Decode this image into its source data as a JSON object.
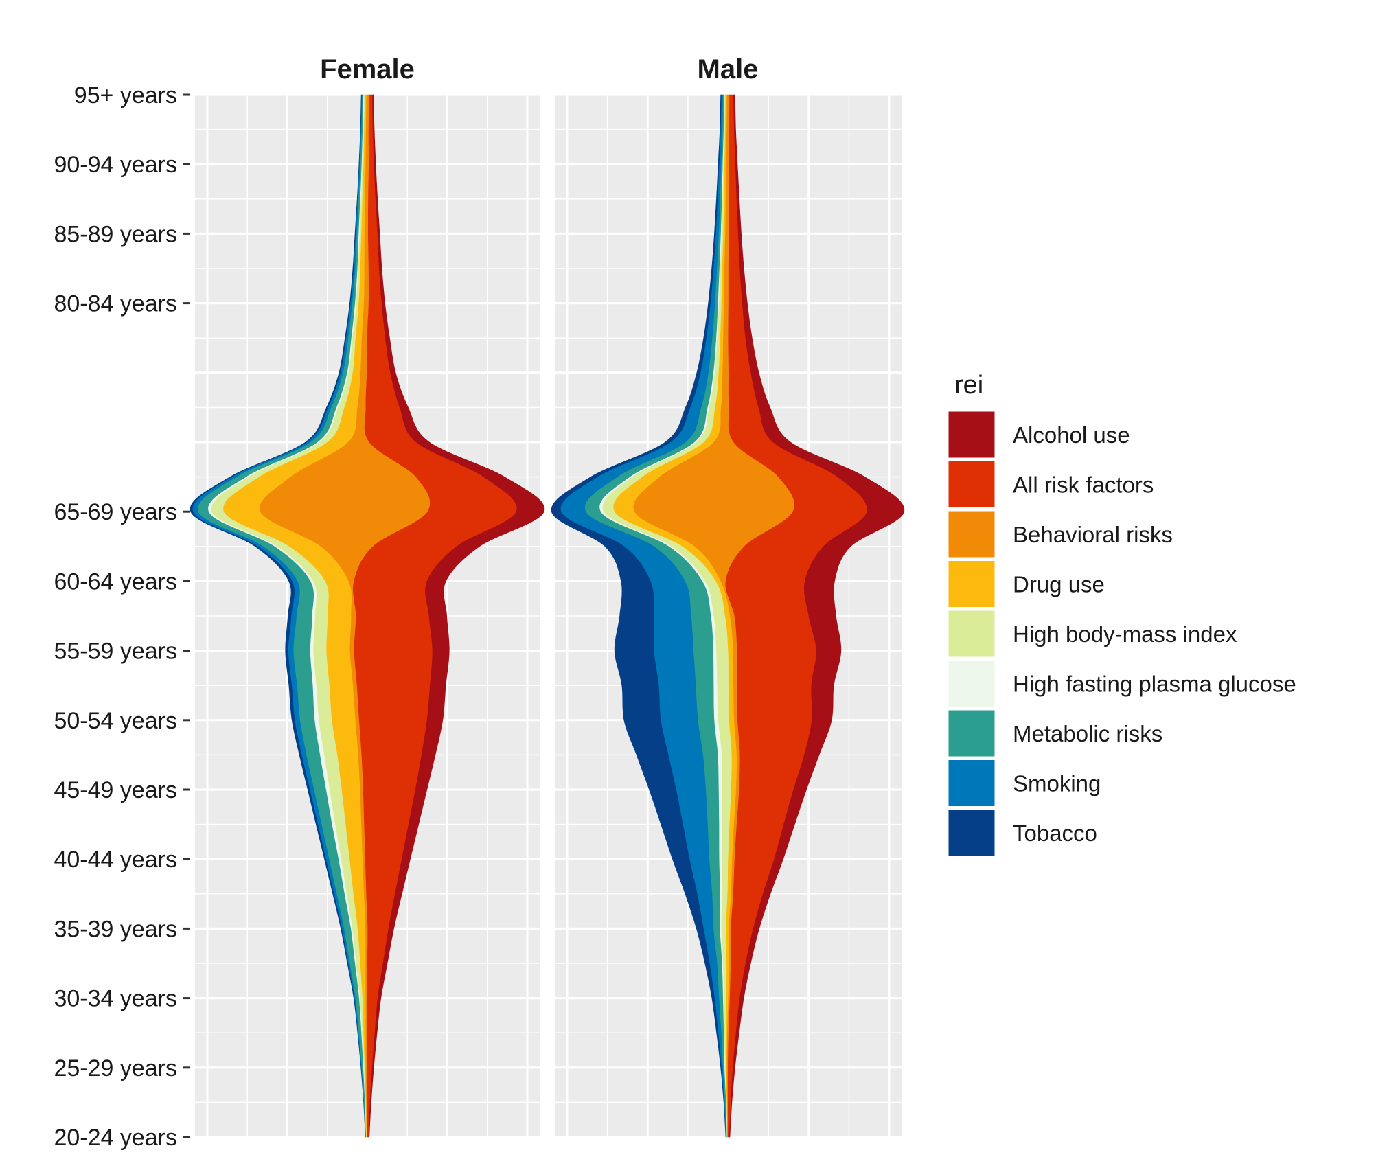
{
  "chart_data": {
    "type": "area",
    "subtype": "streamgraph-faceted",
    "facets": [
      "Female",
      "Male"
    ],
    "y_categories": [
      "20-24 years",
      "25-29 years",
      "30-34 years",
      "35-39 years",
      "40-44 years",
      "45-49 years",
      "50-54 years",
      "55-59 years",
      "60-64 years",
      "65-69 years",
      "80-84 years",
      "85-89 years",
      "90-94 years",
      "95+ years"
    ],
    "y_positions": [
      20,
      25,
      30,
      35,
      40,
      45,
      50,
      55,
      60,
      65,
      80,
      85,
      90,
      95
    ],
    "x_tick_labels": [],
    "grid": true,
    "legend_title": "rei",
    "legend_position": "right",
    "series": [
      {
        "name": "Alcohol use",
        "color": "#A50F15"
      },
      {
        "name": "All risk factors",
        "color": "#DE3004"
      },
      {
        "name": "Behavioral risks",
        "color": "#F18B07"
      },
      {
        "name": "Drug use",
        "color": "#FCBA0F"
      },
      {
        "name": "High body-mass index",
        "color": "#DAEC98"
      },
      {
        "name": "High fasting plasma glucose",
        "color": "#EEF7EC"
      },
      {
        "name": "Metabolic risks",
        "color": "#2C9E8F"
      },
      {
        "name": "Smoking",
        "color": "#0077B9"
      },
      {
        "name": "Tobacco",
        "color": "#053F88"
      }
    ],
    "panels": [
      {
        "facet": "Female",
        "age": [
          20,
          22.5,
          25,
          27.5,
          30,
          32.5,
          35,
          37.5,
          40,
          42.5,
          45,
          47.5,
          50,
          52.5,
          55,
          57.5,
          60,
          62.5,
          65,
          67.5,
          70,
          72.5,
          75,
          77.5,
          80,
          82.5,
          85,
          87.5,
          90,
          92.5,
          95
        ],
        "values": {
          "Alcohol use": [
            0.1,
            0.2,
            0.3,
            0.4,
            0.6,
            0.8,
            1.0,
            1.3,
            1.6,
            1.9,
            2.2,
            2.6,
            3.0,
            3.0,
            3.2,
            3.4,
            3.6,
            4.4,
            5.3,
            4.0,
            2.5,
            1.6,
            1.0,
            0.8,
            0.6,
            0.5,
            0.4,
            0.35,
            0.3,
            0.25,
            0.2
          ],
          "All risk factors": [
            0.3,
            0.6,
            1.0,
            1.5,
            2.0,
            3.0,
            4.0,
            5.5,
            7.0,
            8.5,
            10.0,
            11.5,
            13.0,
            14.0,
            15.0,
            14.0,
            14.0,
            16.0,
            17.0,
            13.0,
            9.0,
            6.5,
            4.5,
            3.5,
            2.5,
            2.0,
            1.8,
            1.4,
            1.0,
            0.8,
            0.6
          ],
          "Behavioral risks": [
            0.05,
            0.1,
            0.2,
            0.25,
            0.3,
            0.35,
            0.4,
            0.45,
            0.5,
            0.55,
            0.6,
            0.65,
            0.7,
            0.75,
            0.8,
            0.9,
            1.0,
            10.0,
            32.0,
            24.0,
            4.0,
            1.6,
            1.2,
            1.0,
            0.9,
            0.8,
            0.7,
            0.6,
            0.6,
            0.5,
            0.5
          ],
          "Drug use": [
            0.05,
            0.1,
            0.2,
            0.4,
            0.6,
            1.0,
            1.5,
            2.0,
            2.5,
            3.0,
            3.5,
            4.0,
            4.5,
            4.5,
            4.5,
            4.5,
            4.5,
            6.0,
            7.0,
            6.0,
            4.0,
            2.5,
            1.5,
            1.2,
            1.0,
            0.8,
            0.6,
            0.5,
            0.4,
            0.35,
            0.3
          ],
          "High body-mass index": [
            0.05,
            0.1,
            0.2,
            0.3,
            0.5,
            0.8,
            1.0,
            1.3,
            1.6,
            2.0,
            2.3,
            2.5,
            2.5,
            2.5,
            2.5,
            2.4,
            2.3,
            2.3,
            2.3,
            2.0,
            1.5,
            1.2,
            0.8,
            0.6,
            0.5,
            0.4,
            0.35,
            0.3,
            0.25,
            0.2,
            0.2
          ],
          "High fasting plasma glucose": [
            0.02,
            0.05,
            0.08,
            0.1,
            0.15,
            0.2,
            0.3,
            0.4,
            0.5,
            0.6,
            0.7,
            0.8,
            0.8,
            0.7,
            0.6,
            0.55,
            0.5,
            0.5,
            0.6,
            0.5,
            0.35,
            0.3,
            0.25,
            0.2,
            0.2,
            0.15,
            0.15,
            0.12,
            0.1,
            0.1,
            0.1
          ],
          "Metabolic risks": [
            0.1,
            0.2,
            0.3,
            0.5,
            0.7,
            1.0,
            1.3,
            1.5,
            1.8,
            2.0,
            2.3,
            2.6,
            2.8,
            3.0,
            3.2,
            3.0,
            2.5,
            2.2,
            2.0,
            1.8,
            1.3,
            1.0,
            0.8,
            0.6,
            0.5,
            0.4,
            0.35,
            0.3,
            0.25,
            0.2,
            0.2
          ],
          "Smoking": [
            0.02,
            0.05,
            0.1,
            0.15,
            0.2,
            0.3,
            0.4,
            0.5,
            0.6,
            0.7,
            0.8,
            0.9,
            1.0,
            1.0,
            1.0,
            1.0,
            1.0,
            1.0,
            1.0,
            0.9,
            0.7,
            0.6,
            0.5,
            0.4,
            0.35,
            0.3,
            0.25,
            0.2,
            0.2,
            0.15,
            0.15
          ],
          "Tobacco": [
            0.02,
            0.05,
            0.08,
            0.1,
            0.15,
            0.2,
            0.25,
            0.3,
            0.35,
            0.4,
            0.45,
            0.5,
            0.6,
            0.6,
            0.6,
            0.7,
            0.7,
            0.6,
            0.5,
            0.45,
            0.4,
            0.35,
            0.3,
            0.25,
            0.2,
            0.2,
            0.15,
            0.12,
            0.1,
            0.1,
            0.1
          ]
        }
      },
      {
        "facet": "Male",
        "age": [
          20,
          22.5,
          25,
          27.5,
          30,
          32.5,
          35,
          37.5,
          40,
          42.5,
          45,
          47.5,
          50,
          52.5,
          55,
          57.5,
          60,
          62.5,
          65,
          67.5,
          70,
          72.5,
          75,
          77.5,
          80,
          82.5,
          85,
          87.5,
          90,
          92.5,
          95
        ],
        "values": {
          "Alcohol use": [
            0.1,
            0.2,
            0.4,
            0.6,
            0.8,
            1.0,
            1.2,
            1.5,
            1.8,
            2.2,
            2.6,
            3.0,
            4.0,
            4.5,
            5.0,
            5.5,
            6.0,
            5.5,
            7.5,
            5.5,
            3.5,
            2.3,
            1.6,
            1.3,
            1.0,
            0.8,
            0.6,
            0.5,
            0.4,
            0.3,
            0.3
          ],
          "All risk factors": [
            0.3,
            0.6,
            1.0,
            1.5,
            2.0,
            3.0,
            4.5,
            6.0,
            8.0,
            9.5,
            11.0,
            13.0,
            15.0,
            15.0,
            16.0,
            15.0,
            16.0,
            16.0,
            15.0,
            12.0,
            8.0,
            6.0,
            4.5,
            3.5,
            2.8,
            2.3,
            1.9,
            1.6,
            1.3,
            1.0,
            0.8
          ],
          "Behavioral risks": [
            0.05,
            0.1,
            0.2,
            0.25,
            0.3,
            0.35,
            0.4,
            0.45,
            0.5,
            0.55,
            0.6,
            0.65,
            0.7,
            0.75,
            0.8,
            0.9,
            1.0,
            10.0,
            32.0,
            24.0,
            4.0,
            1.6,
            1.2,
            1.0,
            0.9,
            0.8,
            0.7,
            0.6,
            0.6,
            0.5,
            0.5
          ],
          "Drug use": [
            0.05,
            0.1,
            0.2,
            0.3,
            0.4,
            0.5,
            0.6,
            0.7,
            0.8,
            0.9,
            1.0,
            1.0,
            1.0,
            1.0,
            1.0,
            1.0,
            1.0,
            2.5,
            4.0,
            3.5,
            2.0,
            1.2,
            0.8,
            0.6,
            0.5,
            0.45,
            0.4,
            0.35,
            0.3,
            0.3,
            0.3
          ],
          "High body-mass index": [
            0.05,
            0.1,
            0.2,
            0.3,
            0.5,
            0.7,
            0.9,
            1.1,
            1.3,
            1.5,
            1.8,
            2.0,
            2.2,
            2.3,
            2.4,
            2.3,
            2.2,
            2.2,
            2.2,
            2.0,
            1.5,
            1.2,
            0.8,
            0.6,
            0.5,
            0.4,
            0.35,
            0.3,
            0.25,
            0.2,
            0.2
          ],
          "High fasting plasma glucose": [
            0.02,
            0.05,
            0.08,
            0.1,
            0.15,
            0.2,
            0.3,
            0.4,
            0.5,
            0.6,
            0.7,
            0.8,
            0.8,
            0.7,
            0.6,
            0.55,
            0.5,
            0.5,
            0.6,
            0.5,
            0.35,
            0.3,
            0.25,
            0.2,
            0.2,
            0.15,
            0.15,
            0.12,
            0.1,
            0.1,
            0.1
          ],
          "Metabolic risks": [
            0.1,
            0.2,
            0.3,
            0.5,
            0.8,
            1.0,
            1.3,
            1.6,
            2.0,
            2.3,
            2.6,
            3.0,
            3.3,
            3.6,
            4.0,
            4.0,
            3.5,
            3.0,
            3.0,
            2.5,
            1.8,
            1.3,
            1.0,
            0.8,
            0.6,
            0.5,
            0.4,
            0.35,
            0.3,
            0.25,
            0.2
          ],
          "Smoking": [
            0.1,
            0.2,
            0.3,
            0.6,
            0.9,
            1.5,
            2.0,
            3.0,
            4.0,
            5.0,
            6.0,
            7.0,
            7.5,
            7.5,
            8.0,
            7.5,
            7.0,
            6.0,
            5.0,
            4.0,
            3.0,
            2.2,
            1.6,
            1.2,
            0.9,
            0.7,
            0.6,
            0.5,
            0.4,
            0.35,
            0.3
          ],
          "Tobacco": [
            0.05,
            0.1,
            0.2,
            0.4,
            0.6,
            1.0,
            1.5,
            2.5,
            3.5,
            4.5,
            5.5,
            6.5,
            7.5,
            7.5,
            8.0,
            7.0,
            6.0,
            4.0,
            2.0,
            1.5,
            1.2,
            1.0,
            0.8,
            0.6,
            0.5,
            0.4,
            0.35,
            0.3,
            0.25,
            0.2,
            0.2
          ]
        }
      }
    ]
  }
}
